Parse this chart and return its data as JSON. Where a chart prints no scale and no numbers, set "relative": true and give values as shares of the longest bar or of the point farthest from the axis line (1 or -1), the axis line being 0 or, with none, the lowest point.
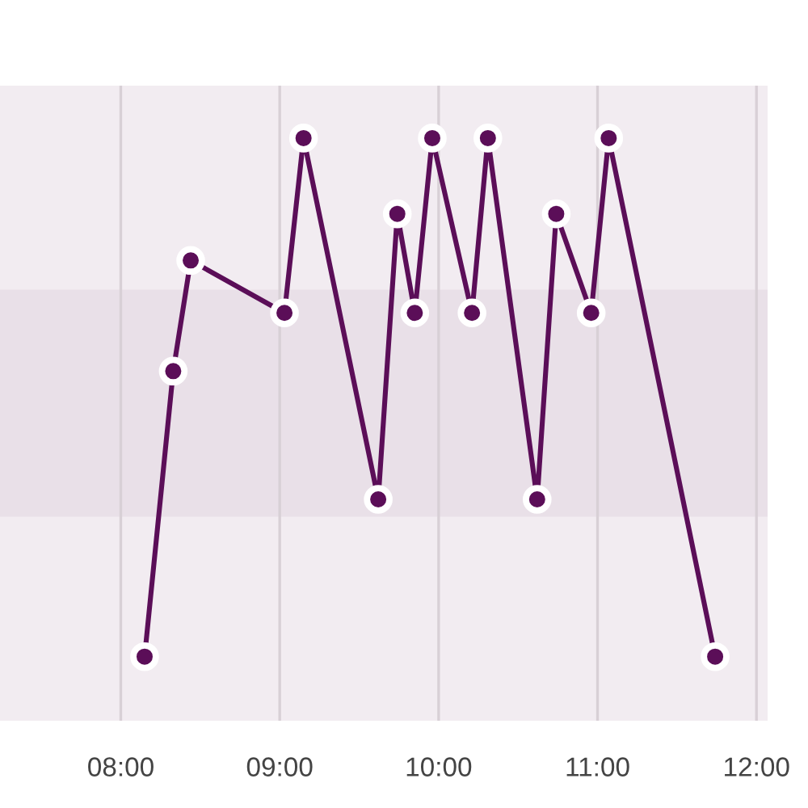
{
  "chart_data": {
    "type": "line",
    "relative": true,
    "x": [
      8.15,
      8.33,
      8.44,
      9.03,
      9.15,
      9.62,
      9.74,
      9.85,
      9.96,
      10.21,
      10.31,
      10.62,
      10.74,
      10.96,
      11.07,
      11.74
    ],
    "values": [
      0.11,
      0.6,
      0.79,
      0.7,
      1,
      0.38,
      0.87,
      0.7,
      1,
      0.7,
      1,
      0.38,
      0.87,
      0.7,
      1,
      0.11
    ],
    "color": "#5b0e58",
    "marker": "circle",
    "line_style": "solid",
    "xlim": [
      7.24,
      12.07
    ],
    "xticks": [
      {
        "value": 8,
        "label": "08:00"
      },
      {
        "value": 9,
        "label": "09:00"
      },
      {
        "value": 10,
        "label": "10:00"
      },
      {
        "value": 11,
        "label": "11:00"
      },
      {
        "value": 12,
        "label": "12:00"
      }
    ],
    "grid": "x",
    "tick_labels": "x",
    "bands": [
      {
        "axis": "y",
        "from": 0.35,
        "to": 0.74,
        "color": "#e9e0e8"
      }
    ]
  }
}
